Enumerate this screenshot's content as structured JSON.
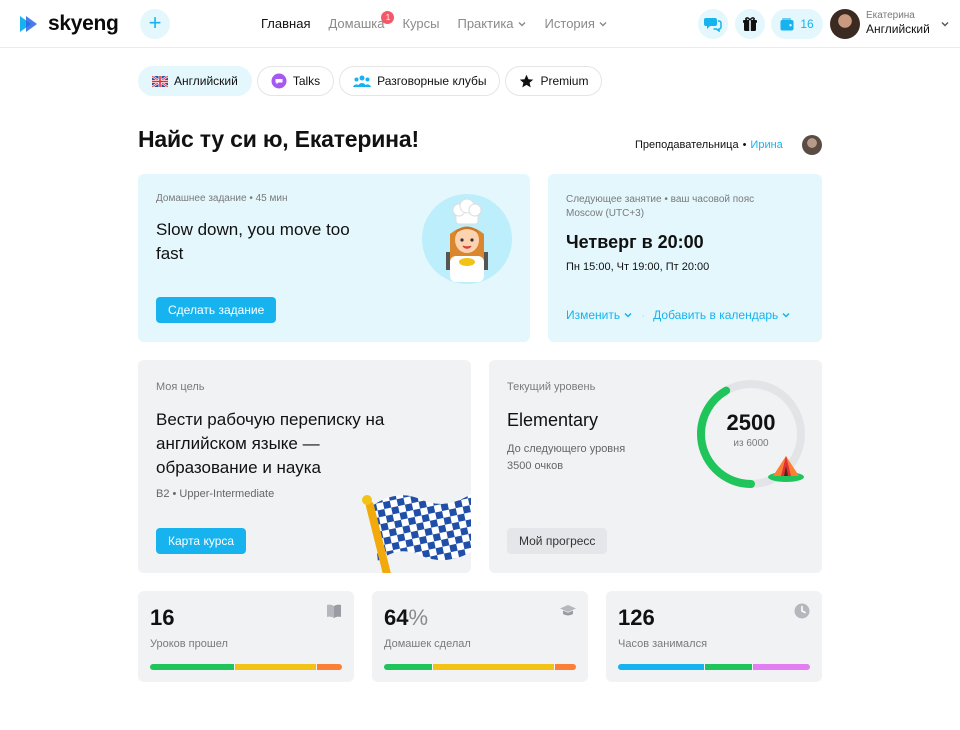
{
  "header": {
    "logo_text": "skyeng",
    "nav": [
      {
        "label": "Главная",
        "active": true
      },
      {
        "label": "Домашка",
        "badge": "1"
      },
      {
        "label": "Курсы"
      },
      {
        "label": "Практика",
        "dropdown": true
      },
      {
        "label": "История",
        "dropdown": true
      }
    ],
    "wallet_count": "16",
    "user_name": "Екатерина",
    "user_course": "Английский",
    "icons": [
      "plus-icon",
      "chat-icon",
      "gift-icon",
      "wallet-icon",
      "chevron-down-icon"
    ]
  },
  "tabs": [
    {
      "label": "Английский",
      "icon": "uk-flag-icon",
      "active": true
    },
    {
      "label": "Talks",
      "icon": "talks-bubble-icon"
    },
    {
      "label": "Разговорные клубы",
      "icon": "people-icon"
    },
    {
      "label": "Premium",
      "icon": "star-icon"
    }
  ],
  "greeting": "Найс ту си ю, Екатерина!",
  "teacher": {
    "role": "Преподавательница",
    "separator": "•",
    "name": "Ирина"
  },
  "homework": {
    "label": "Домашнее задание • 45 мин",
    "title": "Slow down, you move too fast",
    "button": "Сделать задание"
  },
  "next_lesson": {
    "label": "Следующее занятие • ваш часовой пояс Moscow (UTC+3)",
    "time": "Четверг в 20:00",
    "schedule": "Пн 15:00, Чт 19:00, Пт 20:00",
    "change_link": "Изменить",
    "separator": "·",
    "calendar_link": "Добавить в календарь"
  },
  "goal": {
    "label": "Моя цель",
    "title": "Вести рабочую переписку на английском языке — образование и наука",
    "level": "B2 • Upper-Intermediate",
    "button": "Карта курса"
  },
  "level": {
    "label": "Текущий уровень",
    "title": "Elementary",
    "next_line1": "До следующего уровня",
    "next_line2": "3500 очков",
    "points": 2500,
    "points_text": "2500",
    "max_text": "из 6000",
    "max": 6000,
    "button": "Мой прогресс"
  },
  "stats": [
    {
      "value": "16",
      "suffix": "",
      "label": "Уроков прошел",
      "icon": "book-icon",
      "segments": [
        {
          "share": 0.44,
          "color": "#1fc45b"
        },
        {
          "share": 0.43,
          "color": "#f2c316"
        },
        {
          "share": 0.13,
          "color": "#fc7f35"
        }
      ]
    },
    {
      "value": "64",
      "suffix": "%",
      "label": "Домашек сделал",
      "icon": "cap-icon",
      "segments": [
        {
          "share": 0.25,
          "color": "#1fc45b"
        },
        {
          "share": 0.64,
          "color": "#f2c316"
        },
        {
          "share": 0.11,
          "color": "#fc7f35"
        }
      ]
    },
    {
      "value": "126",
      "suffix": "",
      "label": "Часов занимался",
      "icon": "clock-icon",
      "segments": [
        {
          "share": 0.45,
          "color": "#16b3ef"
        },
        {
          "share": 0.25,
          "color": "#1fc45b"
        },
        {
          "share": 0.3,
          "color": "#e27ef2"
        }
      ]
    }
  ],
  "colors": {
    "accent": "#16b3ef",
    "card_blue": "#e3f7fd",
    "card_grey": "#f1f2f4",
    "gauge_green": "#1fc45b",
    "badge_red": "#f2596b"
  }
}
